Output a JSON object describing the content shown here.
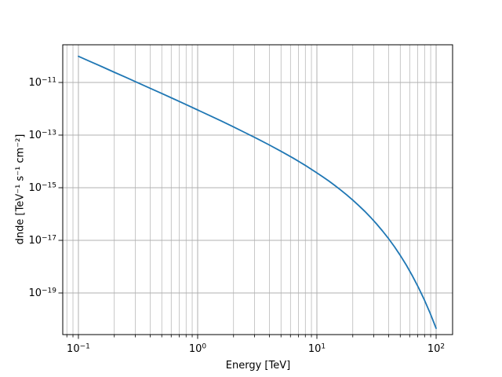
{
  "figure": {
    "background": "#ffffff",
    "text_color": "#000000"
  },
  "chart_data": {
    "type": "line",
    "title": "",
    "xlabel": "Energy [TeV]",
    "ylabel": "dnde [TeV⁻¹ s⁻¹ cm⁻²]",
    "x_scale": "log",
    "y_scale": "log",
    "xlim": [
      0.0739,
      137.4
    ],
    "ylim": [
      2.62e-21,
      2.71e-10
    ],
    "grid": true,
    "legend": false,
    "colors": {
      "line": "#1f77b4",
      "grid": "#b0b0b0",
      "spine": "#000000"
    },
    "x_ticks": [
      {
        "value": 0.1,
        "label": "10⁻¹",
        "base": "10",
        "exponent": "−1"
      },
      {
        "value": 1.0,
        "label": "10⁰",
        "base": "10",
        "exponent": "0"
      },
      {
        "value": 10.0,
        "label": "10¹",
        "base": "10",
        "exponent": "1"
      },
      {
        "value": 100.0,
        "label": "10²",
        "base": "10",
        "exponent": "2"
      }
    ],
    "x_minor_ticks": [
      0.08,
      0.09,
      0.2,
      0.3,
      0.4,
      0.5,
      0.6,
      0.7,
      0.8,
      0.9,
      2,
      3,
      4,
      5,
      6,
      7,
      8,
      9,
      20,
      30,
      40,
      50,
      60,
      70,
      80,
      90
    ],
    "y_ticks": [
      {
        "value": 1e-11,
        "label": "10⁻¹¹",
        "base": "10",
        "exponent": "−11"
      },
      {
        "value": 1e-13,
        "label": "10⁻¹³",
        "base": "10",
        "exponent": "−13"
      },
      {
        "value": 1e-15,
        "label": "10⁻¹⁵",
        "base": "10",
        "exponent": "−15"
      },
      {
        "value": 1e-17,
        "label": "10⁻¹⁷",
        "base": "10",
        "exponent": "−17"
      },
      {
        "value": 1e-19,
        "label": "10⁻¹⁹",
        "base": "10",
        "exponent": "−19"
      }
    ],
    "series": [
      {
        "name": "dnde",
        "x": [
          0.1,
          0.126,
          0.158,
          0.2,
          0.251,
          0.316,
          0.398,
          0.501,
          0.631,
          0.794,
          1.0,
          1.26,
          1.58,
          2.0,
          2.51,
          3.16,
          3.98,
          5.01,
          6.31,
          7.94,
          10.0,
          11.2,
          12.6,
          14.1,
          15.8,
          17.8,
          20.0,
          22.4,
          25.1,
          28.2,
          31.6,
          35.5,
          39.8,
          44.7,
          50.1,
          56.2,
          63.1,
          70.8,
          79.4,
          89.1,
          100.0
        ],
        "y": [
          9.9e-11,
          6.22e-11,
          3.95e-11,
          2.45e-11,
          1.55e-11,
          9.71e-12,
          6.06e-12,
          3.79e-12,
          2.36e-12,
          1.47e-12,
          9.05e-13,
          5.55e-13,
          3.42e-13,
          2.05e-13,
          1.23e-13,
          7.29e-14,
          4.24e-14,
          2.41e-14,
          1.34e-14,
          7.17e-15,
          3.68e-15,
          2.6e-15,
          1.79e-15,
          1.23e-15,
          8.25e-16,
          5.32e-16,
          3.38e-16,
          2.12e-16,
          1.29e-16,
          7.5e-17,
          4.24e-17,
          2.28e-17,
          1.18e-17,
          5.74e-18,
          2.66e-18,
          1.15e-18,
          4.58e-19,
          1.68e-19,
          5.66e-20,
          1.7e-20,
          4.54e-21
        ]
      }
    ]
  }
}
